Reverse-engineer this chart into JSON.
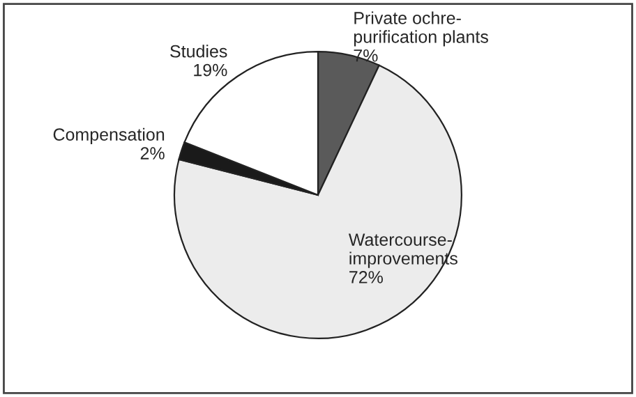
{
  "chart_data": {
    "type": "pie",
    "categories": [
      "Private ochre-\npurification plants",
      "Watercourse-\nimprovements",
      "Compensation",
      "Studies"
    ],
    "values": [
      7,
      72,
      2,
      19
    ],
    "colors": [
      "#5a5a5a",
      "#ececec",
      "#1a1a1a",
      "#ffffff"
    ],
    "value_labels": [
      "7%",
      "72%",
      "2%",
      "19%"
    ]
  }
}
